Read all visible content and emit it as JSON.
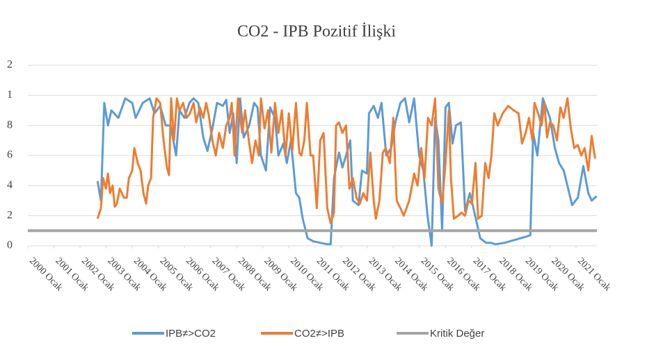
{
  "chart_data": {
    "type": "line",
    "title": "CO2 - IPB Pozitif İlişki",
    "xlim": [
      2000,
      2021.8
    ],
    "xticks": [
      {
        "value": 2000,
        "label": "2000 Ocak"
      },
      {
        "value": 2001,
        "label": "2001 Ocak"
      },
      {
        "value": 2002,
        "label": "2002 Ocak"
      },
      {
        "value": 2003,
        "label": "2003 Ocak"
      },
      {
        "value": 2004,
        "label": "2004 Ocak"
      },
      {
        "value": 2005,
        "label": "2005 Ocak"
      },
      {
        "value": 2006,
        "label": "2006 Ocak"
      },
      {
        "value": 2007,
        "label": "2007 Ocak"
      },
      {
        "value": 2008,
        "label": "2008 Ocak"
      },
      {
        "value": 2009,
        "label": "2009 Ocak"
      },
      {
        "value": 2010,
        "label": "2010 Ocak"
      },
      {
        "value": 2011,
        "label": "2011 Ocak"
      },
      {
        "value": 2012,
        "label": "2012 Ocak"
      },
      {
        "value": 2013,
        "label": "2013 Ocak"
      },
      {
        "value": 2014,
        "label": "2014 Ocak"
      },
      {
        "value": 2015,
        "label": "2015 Ocak"
      },
      {
        "value": 2016,
        "label": "2016 Ocak"
      },
      {
        "value": 2017,
        "label": "2017 Ocak"
      },
      {
        "value": 2018,
        "label": "2018 Ocak"
      },
      {
        "value": 2019,
        "label": "2019 Ocak"
      },
      {
        "value": 2020,
        "label": "2020 Ocak"
      },
      {
        "value": 2021,
        "label": "2021 Ocak"
      }
    ],
    "ylim": [
      0,
      1.2
    ],
    "yticks": [
      0,
      {
        "value": 0.2,
        "label": "2"
      },
      {
        "value": 0.4,
        "label": "4"
      },
      {
        "value": 0.6,
        "label": "6"
      },
      {
        "value": 0.8,
        "label": "8"
      },
      1,
      {
        "value": 1.2,
        "label": "2"
      }
    ],
    "grid": true,
    "legend": "bottom",
    "series": [
      {
        "name": "IPB≠>CO2",
        "color": "#5b9bd5",
        "x": [
          2002.67,
          2002.8,
          2002.93,
          2003.07,
          2003.2,
          2003.47,
          2003.73,
          2004.0,
          2004.13,
          2004.4,
          2004.67,
          2004.85,
          2005.07,
          2005.28,
          2005.47,
          2005.68,
          2005.81,
          2006.0,
          2006.19,
          2006.35,
          2006.53,
          2006.72,
          2006.88,
          2007.07,
          2007.25,
          2007.47,
          2007.6,
          2007.73,
          2007.87,
          2008.0,
          2008.13,
          2008.27,
          2008.48,
          2008.67,
          2008.8,
          2008.93,
          2009.12,
          2009.28,
          2009.47,
          2009.6,
          2009.79,
          2009.92,
          2010.08,
          2010.27,
          2010.4,
          2010.53,
          2010.72,
          2010.93,
          2011.2,
          2011.47,
          2011.6,
          2011.73,
          2011.92,
          2012.05,
          2012.19,
          2012.35,
          2012.45,
          2012.67,
          2012.8,
          2012.99,
          2013.07,
          2013.25,
          2013.41,
          2013.55,
          2013.73,
          2013.92,
          2014.08,
          2014.27,
          2014.45,
          2014.61,
          2014.8,
          2014.99,
          2015.15,
          2015.31,
          2015.47,
          2015.6,
          2015.73,
          2015.87,
          2016.0,
          2016.13,
          2016.27,
          2016.4,
          2016.59,
          2016.75,
          2016.93,
          2017.07,
          2017.33,
          2017.55,
          2017.73,
          2017.92,
          2018.27,
          2018.67,
          2019.07,
          2019.25,
          2019.36,
          2019.52,
          2019.73,
          2020.0,
          2020.19,
          2020.35,
          2020.53,
          2020.67,
          2020.85,
          2021.07,
          2021.28,
          2021.47,
          2021.6,
          2021.79
        ],
        "values": [
          0.43,
          0.3,
          0.95,
          0.8,
          0.9,
          0.85,
          0.98,
          0.95,
          0.85,
          0.95,
          0.98,
          0.88,
          0.93,
          0.8,
          0.8,
          0.6,
          0.9,
          0.85,
          0.95,
          0.98,
          0.95,
          0.72,
          0.63,
          0.78,
          0.95,
          0.93,
          0.97,
          0.75,
          0.88,
          0.55,
          0.98,
          0.72,
          0.8,
          0.95,
          0.92,
          0.6,
          0.5,
          0.92,
          0.85,
          0.6,
          0.68,
          0.55,
          0.7,
          0.35,
          0.32,
          0.18,
          0.05,
          0.03,
          0.02,
          0.01,
          0.01,
          0.45,
          0.62,
          0.52,
          0.6,
          0.7,
          0.3,
          0.27,
          0.5,
          0.48,
          0.88,
          0.93,
          0.85,
          0.95,
          0.6,
          0.65,
          0.82,
          0.95,
          0.98,
          0.82,
          0.98,
          0.6,
          0.5,
          0.2,
          0.0,
          0.85,
          0.7,
          0.1,
          0.92,
          0.95,
          0.68,
          0.8,
          0.82,
          0.23,
          0.35,
          0.25,
          0.05,
          0.02,
          0.02,
          0.01,
          0.02,
          0.04,
          0.06,
          0.07,
          0.75,
          0.6,
          0.98,
          0.85,
          0.65,
          0.55,
          0.5,
          0.4,
          0.27,
          0.32,
          0.53,
          0.35,
          0.3,
          0.33
        ]
      },
      {
        "name": "CO2≠>IPB",
        "color": "#ed7d31",
        "x": [
          2002.67,
          2002.8,
          2002.88,
          2002.99,
          2003.07,
          2003.15,
          2003.25,
          2003.33,
          2003.41,
          2003.52,
          2003.68,
          2003.79,
          2003.87,
          2004.0,
          2004.08,
          2004.21,
          2004.32,
          2004.43,
          2004.53,
          2004.61,
          2004.72,
          2004.8,
          2004.93,
          2005.07,
          2005.2,
          2005.33,
          2005.41,
          2005.49,
          2005.6,
          2005.71,
          2005.81,
          2005.95,
          2006.08,
          2006.21,
          2006.35,
          2006.45,
          2006.59,
          2006.72,
          2006.83,
          2006.93,
          2007.07,
          2007.2,
          2007.33,
          2007.47,
          2007.6,
          2007.73,
          2007.81,
          2007.92,
          2008.05,
          2008.21,
          2008.32,
          2008.45,
          2008.59,
          2008.72,
          2008.85,
          2008.93,
          2009.07,
          2009.2,
          2009.33,
          2009.47,
          2009.6,
          2009.73,
          2009.87,
          2010.0,
          2010.13,
          2010.27,
          2010.4,
          2010.48,
          2010.59,
          2010.69,
          2010.83,
          2010.93,
          2011.07,
          2011.2,
          2011.33,
          2011.47,
          2011.6,
          2011.73,
          2011.81,
          2011.92,
          2012.05,
          2012.19,
          2012.32,
          2012.45,
          2012.59,
          2012.72,
          2012.85,
          2012.99,
          2013.12,
          2013.25,
          2013.33,
          2013.47,
          2013.6,
          2013.71,
          2013.87,
          2014.0,
          2014.13,
          2014.27,
          2014.4,
          2014.61,
          2014.8,
          2014.93,
          2015.07,
          2015.2,
          2015.33,
          2015.47,
          2015.6,
          2015.73,
          2015.87,
          2016.0,
          2016.13,
          2016.21,
          2016.32,
          2016.48,
          2016.61,
          2016.75,
          2016.88,
          2017.01,
          2017.15,
          2017.25,
          2017.39,
          2017.52,
          2017.65,
          2017.76,
          2017.87,
          2018.0,
          2018.19,
          2018.4,
          2018.61,
          2018.8,
          2018.93,
          2019.07,
          2019.2,
          2019.33,
          2019.41,
          2019.55,
          2019.68,
          2019.79,
          2019.89,
          2020.0,
          2020.13,
          2020.27,
          2020.4,
          2020.53,
          2020.67,
          2020.8,
          2020.93,
          2021.07,
          2021.2,
          2021.33,
          2021.47,
          2021.6,
          2021.73
        ],
        "values": [
          0.18,
          0.25,
          0.45,
          0.38,
          0.48,
          0.35,
          0.4,
          0.26,
          0.28,
          0.38,
          0.32,
          0.32,
          0.45,
          0.5,
          0.65,
          0.55,
          0.5,
          0.35,
          0.28,
          0.4,
          0.45,
          0.85,
          0.98,
          0.95,
          0.7,
          0.52,
          0.47,
          0.98,
          0.7,
          0.98,
          0.9,
          0.95,
          0.85,
          0.88,
          0.95,
          0.82,
          0.92,
          0.85,
          0.95,
          0.87,
          0.7,
          0.6,
          0.75,
          0.65,
          0.8,
          0.85,
          0.95,
          0.6,
          0.98,
          0.75,
          0.9,
          0.72,
          0.55,
          0.7,
          0.6,
          0.98,
          0.78,
          0.9,
          0.62,
          0.95,
          0.75,
          0.9,
          0.6,
          0.88,
          0.63,
          0.95,
          0.62,
          0.6,
          0.7,
          0.95,
          0.6,
          0.6,
          0.25,
          0.7,
          0.75,
          0.25,
          0.15,
          0.22,
          0.8,
          0.82,
          0.75,
          0.8,
          0.38,
          0.45,
          0.32,
          0.28,
          0.35,
          0.3,
          0.62,
          0.3,
          0.18,
          0.3,
          0.62,
          0.65,
          0.55,
          0.85,
          0.3,
          0.25,
          0.2,
          0.3,
          0.48,
          0.4,
          0.65,
          0.45,
          0.85,
          0.8,
          0.98,
          0.38,
          0.28,
          0.55,
          0.9,
          0.45,
          0.18,
          0.2,
          0.22,
          0.2,
          0.3,
          0.28,
          0.55,
          0.18,
          0.2,
          0.55,
          0.45,
          0.6,
          0.88,
          0.8,
          0.88,
          0.93,
          0.9,
          0.88,
          0.68,
          0.75,
          0.85,
          0.7,
          0.95,
          0.88,
          0.8,
          0.95,
          0.72,
          0.82,
          0.8,
          0.7,
          0.92,
          0.85,
          0.98,
          0.78,
          0.65,
          0.67,
          0.6,
          0.65,
          0.5,
          0.73,
          0.58
        ]
      },
      {
        "name": "Kritik Değer",
        "color": "#a5a5a5",
        "x": [
          2000,
          2021.8
        ],
        "values": [
          0.1,
          0.1
        ]
      }
    ]
  }
}
